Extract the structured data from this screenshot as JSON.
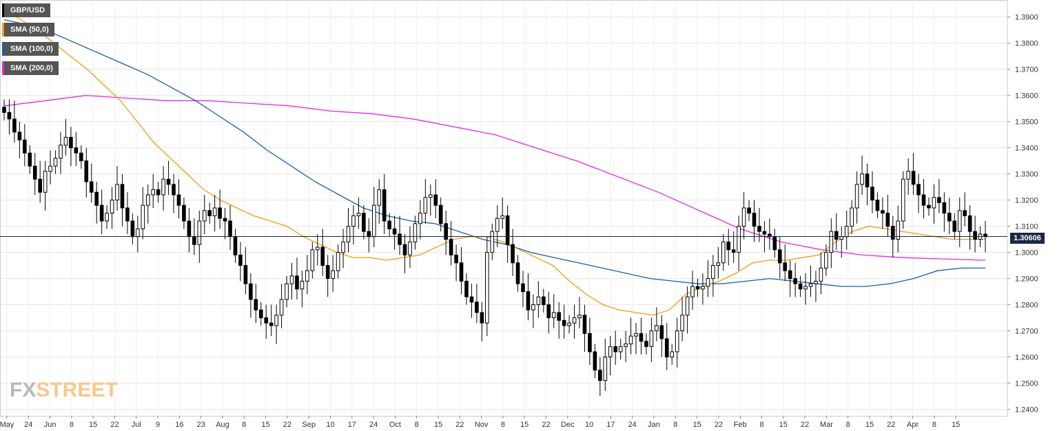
{
  "legend": [
    {
      "label": "GBP/USD",
      "color": "#000000"
    },
    {
      "label": "SMA (50,0)",
      "color": "#f39c12"
    },
    {
      "label": "SMA (100,0)",
      "color": "#1a5fa8"
    },
    {
      "label": "SMA (200,0)",
      "color": "#e22ae2"
    }
  ],
  "logo": {
    "part1": "FX",
    "part2": "STREET"
  },
  "last_price": "1.30606",
  "chart_data": {
    "type": "candlestick",
    "title": "",
    "symbol": "GBP/USD",
    "y_ticks": [
      "1.3900",
      "1.3800",
      "1.3700",
      "1.3600",
      "1.3500",
      "1.3400",
      "1.3300",
      "1.3200",
      "1.3100",
      "1.3000",
      "1.2900",
      "1.2800",
      "1.2700",
      "1.2600",
      "1.2500",
      "1.2400"
    ],
    "x_ticks": [
      "May",
      "24",
      "Jun",
      "8",
      "15",
      "22",
      "Jul",
      "9",
      "16",
      "23",
      "Aug",
      "8",
      "15",
      "22",
      "Sep",
      "10",
      "17",
      "24",
      "Oct",
      "8",
      "15",
      "22",
      "Nov",
      "8",
      "15",
      "22",
      "Dec",
      "10",
      "17",
      "24",
      "Jan",
      "8",
      "15",
      "22",
      "Feb",
      "8",
      "15",
      "22",
      "Mar",
      "8",
      "15",
      "22",
      "Apr",
      "8",
      "15"
    ],
    "ylim": [
      1.2375,
      1.3965
    ],
    "grid": true,
    "current_price": 1.30606,
    "close_series": [
      1.3535,
      1.351,
      1.346,
      1.343,
      1.338,
      1.333,
      1.328,
      1.323,
      1.331,
      1.333,
      1.336,
      1.341,
      1.344,
      1.34,
      1.338,
      1.335,
      1.327,
      1.323,
      1.318,
      1.312,
      1.315,
      1.32,
      1.326,
      1.317,
      1.312,
      1.306,
      1.309,
      1.318,
      1.322,
      1.324,
      1.322,
      1.328,
      1.326,
      1.322,
      1.318,
      1.312,
      1.306,
      1.303,
      1.312,
      1.316,
      1.314,
      1.317,
      1.313,
      1.312,
      1.306,
      1.299,
      1.295,
      1.288,
      1.282,
      1.278,
      1.275,
      1.273,
      1.272,
      1.276,
      1.282,
      1.288,
      1.291,
      1.286,
      1.289,
      1.293,
      1.301,
      1.302,
      1.295,
      1.29,
      1.293,
      1.3,
      1.304,
      1.31,
      1.314,
      1.315,
      1.308,
      1.306,
      1.318,
      1.324,
      1.312,
      1.309,
      1.307,
      1.303,
      1.299,
      1.304,
      1.311,
      1.315,
      1.321,
      1.322,
      1.318,
      1.311,
      1.305,
      1.299,
      1.296,
      1.289,
      1.283,
      1.281,
      1.277,
      1.273,
      1.3,
      1.308,
      1.313,
      1.314,
      1.303,
      1.296,
      1.288,
      1.285,
      1.278,
      1.28,
      1.283,
      1.28,
      1.275,
      1.277,
      1.274,
      1.272,
      1.273,
      1.275,
      1.276,
      1.269,
      1.262,
      1.255,
      1.251,
      1.26,
      1.264,
      1.262,
      1.264,
      1.265,
      1.268,
      1.269,
      1.266,
      1.264,
      1.27,
      1.272,
      1.267,
      1.26,
      1.262,
      1.27,
      1.276,
      1.283,
      1.287,
      1.286,
      1.287,
      1.29,
      1.295,
      1.296,
      1.304,
      1.301,
      1.3,
      1.31,
      1.317,
      1.315,
      1.31,
      1.308,
      1.307,
      1.306,
      1.301,
      1.296,
      1.293,
      1.29,
      1.288,
      1.286,
      1.287,
      1.288,
      1.289,
      1.294,
      1.3,
      1.308,
      1.305,
      1.306,
      1.31,
      1.317,
      1.326,
      1.33,
      1.325,
      1.32,
      1.316,
      1.315,
      1.31,
      1.305,
      1.312,
      1.328,
      1.331,
      1.326,
      1.322,
      1.318,
      1.317,
      1.321,
      1.319,
      1.315,
      1.312,
      1.308,
      1.316,
      1.314,
      1.308,
      1.305,
      1.307,
      1.306
    ],
    "sma_50": [
      1.393,
      1.389,
      1.385,
      1.38,
      1.375,
      1.37,
      1.364,
      1.358,
      1.35,
      1.342,
      1.336,
      1.33,
      1.324,
      1.32,
      1.317,
      1.314,
      1.312,
      1.31,
      1.306,
      1.303,
      1.3,
      1.298,
      1.298,
      1.297,
      1.298,
      1.299,
      1.302,
      1.305,
      1.306,
      1.306,
      1.304,
      1.301,
      1.298,
      1.295,
      1.289,
      1.284,
      1.28,
      1.278,
      1.277,
      1.276,
      1.278,
      1.284,
      1.287,
      1.289,
      1.292,
      1.296,
      1.297,
      1.297,
      1.298,
      1.299,
      1.304,
      1.308,
      1.31,
      1.309,
      1.308,
      1.307,
      1.306,
      1.305,
      1.305,
      1.305
    ],
    "sma_100": [
      1.389,
      1.387,
      1.384,
      1.38,
      1.376,
      1.372,
      1.368,
      1.363,
      1.358,
      1.352,
      1.346,
      1.339,
      1.333,
      1.327,
      1.322,
      1.317,
      1.314,
      1.312,
      1.311,
      1.308,
      1.305,
      1.303,
      1.3,
      1.298,
      1.296,
      1.294,
      1.292,
      1.29,
      1.289,
      1.288,
      1.288,
      1.289,
      1.29,
      1.289,
      1.288,
      1.287,
      1.287,
      1.288,
      1.29,
      1.293,
      1.294,
      1.294
    ],
    "sma_200": [
      1.356,
      1.358,
      1.36,
      1.359,
      1.358,
      1.358,
      1.357,
      1.356,
      1.354,
      1.353,
      1.351,
      1.348,
      1.345,
      1.34,
      1.335,
      1.329,
      1.323,
      1.316,
      1.309,
      1.304,
      1.301,
      1.299,
      1.298,
      1.2975,
      1.297
    ]
  }
}
